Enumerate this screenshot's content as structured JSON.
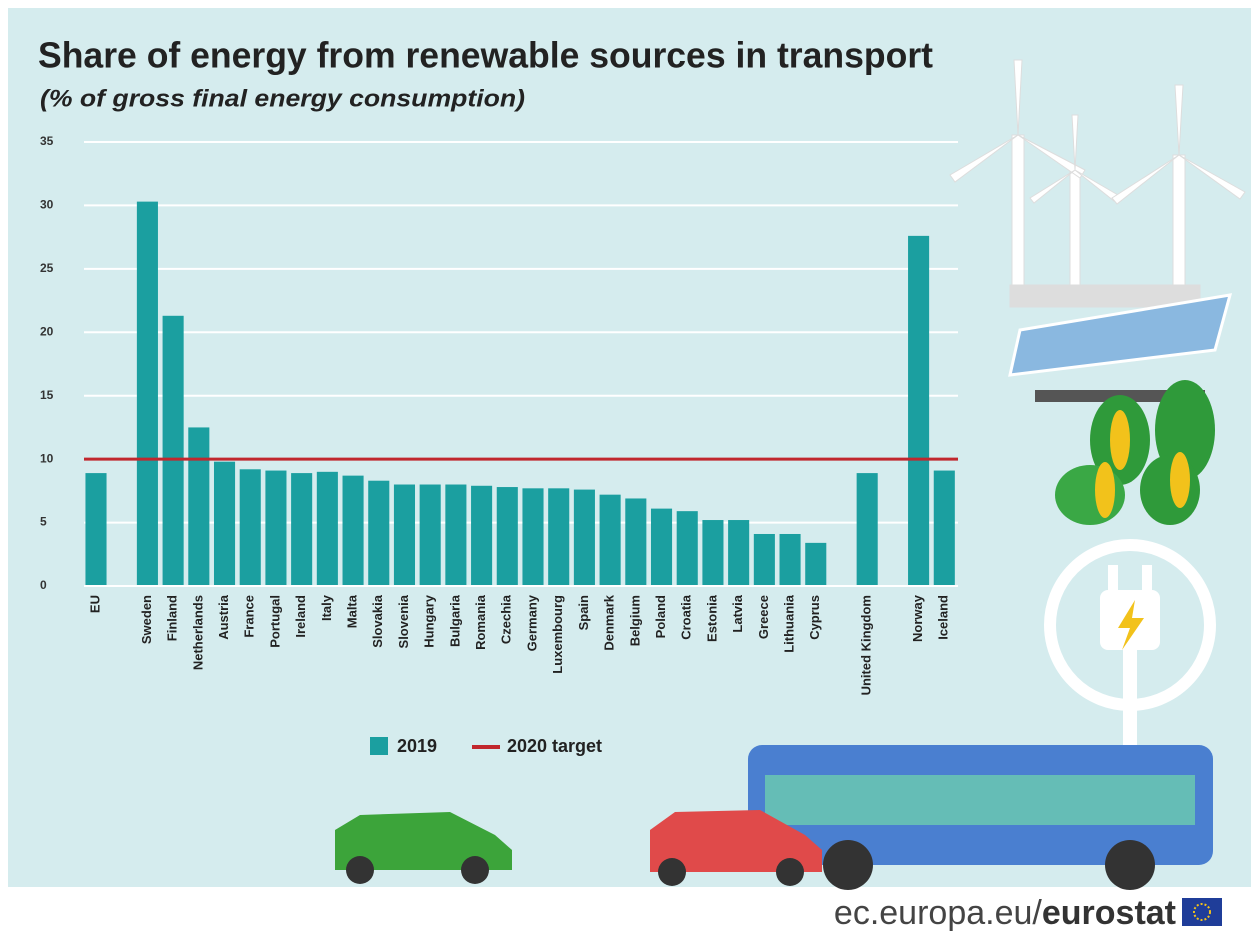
{
  "chart_data": {
    "type": "bar",
    "title": "Share of energy from renewable sources in transport",
    "subtitle": "(% of gross final energy consumption)",
    "categories": [
      "EU",
      null,
      "Sweden",
      "Finland",
      "Netherlands",
      "Austria",
      "France",
      "Portugal",
      "Ireland",
      "Italy",
      "Malta",
      "Slovakia",
      "Slovenia",
      "Hungary",
      "Bulgaria",
      "Romania",
      "Czechia",
      "Germany",
      "Luxembourg",
      "Spain",
      "Denmark",
      "Belgium",
      "Poland",
      "Croatia",
      "Estonia",
      "Latvia",
      "Greece",
      "Lithuania",
      "Cyprus",
      null,
      "United Kingdom",
      null,
      "Norway",
      "Iceland"
    ],
    "series": [
      {
        "name": "2019",
        "color": "#1b9fa0",
        "values": [
          8.9,
          null,
          30.3,
          21.3,
          12.5,
          9.8,
          9.2,
          9.1,
          8.9,
          9.0,
          8.7,
          8.3,
          8.0,
          8.0,
          8.0,
          7.9,
          7.8,
          7.7,
          7.7,
          7.6,
          7.2,
          6.9,
          6.1,
          5.9,
          5.2,
          5.2,
          4.1,
          4.1,
          3.4,
          null,
          8.9,
          null,
          27.6,
          9.1
        ]
      }
    ],
    "target": {
      "name": "2020 target",
      "value": 10,
      "color": "#c1272d"
    },
    "ylim": [
      0,
      35
    ],
    "yticks": [
      0,
      5,
      10,
      15,
      20,
      25,
      30,
      35
    ],
    "grid": true,
    "source": {
      "site": "ec.europa.eu/",
      "brand": "eurostat"
    }
  }
}
